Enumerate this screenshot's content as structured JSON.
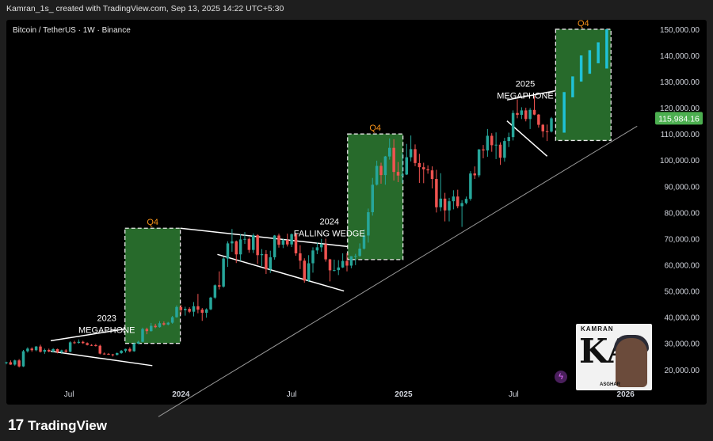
{
  "header": {
    "attribution": "Kamran_1s_ created with TradingView.com, Sep 13, 2025 14:22 UTC+5:30"
  },
  "symbol_line": "Bitcoin / TetherUS · 1W · Binance",
  "footer": {
    "brand": "TradingView"
  },
  "watermark": {
    "top": "KAMRAN",
    "letters": "KA",
    "bottom": "ASGHAR"
  },
  "colors": {
    "up": "#26a69a",
    "down": "#ef5350",
    "highlight_up": "#1fc2d6",
    "box_fill": "#2e7d32",
    "quarter_label": "#f7931a",
    "price_badge": "#4caf50"
  },
  "chart_data": {
    "type": "candlestick",
    "title": "Bitcoin / TetherUS · 1W · Binance",
    "y_axis": {
      "ticks": [
        20000,
        30000,
        40000,
        50000,
        60000,
        70000,
        80000,
        90000,
        100000,
        110000,
        120000,
        130000,
        140000,
        150000
      ],
      "tick_labels": [
        "20,000.00",
        "30,000.00",
        "40,000.00",
        "50,000.00",
        "60,000.00",
        "70,000.00",
        "80,000.00",
        "90,000.00",
        "100,000.00",
        "110,000.00",
        "120,000.00",
        "130,000.00",
        "140,000.00",
        "150,000.00"
      ],
      "range": [
        16000,
        153000
      ]
    },
    "x_axis": {
      "range": [
        "2023-03-20",
        "2026-02-16"
      ],
      "ticks": [
        {
          "date": "2023-07-01",
          "label": "Jul"
        },
        {
          "date": "2024-01-01",
          "label": "2024"
        },
        {
          "date": "2024-07-01",
          "label": "Jul"
        },
        {
          "date": "2025-01-01",
          "label": "2025"
        },
        {
          "date": "2025-07-01",
          "label": "Jul"
        },
        {
          "date": "2026-01-01",
          "label": "2026"
        }
      ]
    },
    "last_price": {
      "value": 115984.16,
      "label": "115,984.16"
    },
    "grid": false,
    "annotations": [
      {
        "text": [
          "2023",
          "MEGAPHONE"
        ],
        "date": "2023-09-01",
        "price": 38500
      },
      {
        "text": [
          "2024",
          "FALLING WEDGE"
        ],
        "date": "2024-09-01",
        "price": 75500
      },
      {
        "text": [
          "2025",
          "MEGAPHONE"
        ],
        "date": "2025-07-20",
        "price": 128000
      }
    ],
    "quarter_boxes": [
      {
        "label": "Q4",
        "start": "2023-10-01",
        "end": "2023-12-31",
        "low": 30000,
        "high": 74000
      },
      {
        "label": "Q4",
        "start": "2024-10-01",
        "end": "2024-12-31",
        "low": 62000,
        "high": 110000
      },
      {
        "label": "Q4",
        "start": "2025-09-08",
        "end": "2025-12-08",
        "low": 107500,
        "high": 150000
      }
    ],
    "lines": [
      {
        "from": {
          "date": "2023-11-25",
          "price": 2000
        },
        "to": {
          "date": "2026-01-20",
          "price": 113000
        }
      },
      {
        "from": {
          "date": "2023-06-01",
          "price": 31000
        },
        "to": {
          "date": "2023-10-01",
          "price": 35500
        }
      },
      {
        "from": {
          "date": "2023-06-01",
          "price": 27000
        },
        "to": {
          "date": "2023-11-15",
          "price": 21500
        }
      },
      {
        "from": {
          "date": "2023-12-31",
          "price": 74000
        },
        "to": {
          "date": "2024-10-01",
          "price": 67000
        }
      },
      {
        "from": {
          "date": "2024-03-01",
          "price": 64000
        },
        "to": {
          "date": "2024-09-25",
          "price": 50000
        }
      },
      {
        "from": {
          "date": "2025-06-20",
          "price": 123000
        },
        "to": {
          "date": "2025-09-08",
          "price": 126500
        }
      },
      {
        "from": {
          "date": "2025-06-20",
          "price": 115000
        },
        "to": {
          "date": "2025-08-25",
          "price": 101500
        }
      }
    ],
    "candles": {
      "start": "2023-03-20",
      "interval_days": 7,
      "ohlc": [
        [
          22500,
          23000,
          22000,
          22800
        ],
        [
          22800,
          23500,
          21800,
          21900
        ],
        [
          21900,
          23800,
          21500,
          23500
        ],
        [
          23500,
          24000,
          20800,
          21200
        ],
        [
          21200,
          27500,
          21000,
          27000
        ],
        [
          27000,
          28500,
          26500,
          28000
        ],
        [
          28000,
          28500,
          26800,
          27400
        ],
        [
          27400,
          29000,
          27000,
          28800
        ],
        [
          28800,
          29500,
          26500,
          26800
        ],
        [
          26800,
          28000,
          26000,
          27500
        ],
        [
          27500,
          28000,
          26600,
          26900
        ],
        [
          26900,
          28200,
          26500,
          27800
        ],
        [
          27800,
          28000,
          26200,
          26700
        ],
        [
          26700,
          27600,
          26000,
          27300
        ],
        [
          27300,
          27800,
          26500,
          26800
        ],
        [
          26800,
          30800,
          26600,
          30400
        ],
        [
          30400,
          31000,
          29800,
          30200
        ],
        [
          30200,
          31500,
          29900,
          30600
        ],
        [
          30600,
          31000,
          29800,
          30100
        ],
        [
          30100,
          30400,
          29200,
          29400
        ],
        [
          29400,
          29700,
          29000,
          29300
        ],
        [
          29300,
          29800,
          28800,
          29100
        ],
        [
          29100,
          29500,
          25800,
          26100
        ],
        [
          26100,
          26500,
          25700,
          26000
        ],
        [
          26000,
          26300,
          25600,
          25800
        ],
        [
          25800,
          26000,
          25000,
          25600
        ],
        [
          25600,
          26500,
          25400,
          26300
        ],
        [
          26300,
          27500,
          26000,
          27200
        ],
        [
          27200,
          28000,
          26500,
          27900
        ],
        [
          27900,
          28500,
          26600,
          27000
        ],
        [
          27000,
          30300,
          26800,
          29900
        ],
        [
          29900,
          31000,
          29700,
          30600
        ],
        [
          30600,
          36000,
          30400,
          35500
        ],
        [
          35500,
          36000,
          33500,
          34700
        ],
        [
          34700,
          37800,
          34500,
          36700
        ],
        [
          36700,
          37500,
          35800,
          36200
        ],
        [
          36200,
          38500,
          36000,
          37700
        ],
        [
          37700,
          38400,
          36800,
          37200
        ],
        [
          37200,
          38200,
          36900,
          37900
        ],
        [
          37900,
          40500,
          37500,
          40000
        ],
        [
          40000,
          44500,
          39800,
          43900
        ],
        [
          43900,
          44700,
          41000,
          42700
        ],
        [
          42700,
          44000,
          40600,
          43200
        ],
        [
          43200,
          43800,
          41600,
          42100
        ],
        [
          42100,
          45800,
          40300,
          44200
        ],
        [
          44200,
          48900,
          41500,
          42900
        ],
        [
          42900,
          43500,
          38600,
          41700
        ],
        [
          41700,
          43400,
          39800,
          43000
        ],
        [
          43000,
          47800,
          42700,
          47500
        ],
        [
          47500,
          52500,
          47000,
          52200
        ],
        [
          52200,
          57500,
          50600,
          51700
        ],
        [
          51700,
          63000,
          51300,
          62400
        ],
        [
          62400,
          69000,
          59200,
          68200
        ],
        [
          68200,
          73700,
          65000,
          69000
        ],
        [
          69000,
          69300,
          60700,
          64000
        ],
        [
          64000,
          71800,
          61500,
          69700
        ],
        [
          69700,
          72500,
          68000,
          69900
        ],
        [
          69900,
          70500,
          64600,
          65700
        ],
        [
          65700,
          72000,
          64500,
          71300
        ],
        [
          71300,
          71700,
          60300,
          63700
        ],
        [
          63700,
          66000,
          59600,
          64100
        ],
        [
          64100,
          65600,
          56500,
          58300
        ],
        [
          58300,
          65400,
          56900,
          62900
        ],
        [
          62900,
          71400,
          62000,
          71200
        ],
        [
          71200,
          71900,
          66600,
          67700
        ],
        [
          67700,
          70000,
          66400,
          69500
        ],
        [
          69500,
          71900,
          67000,
          67800
        ],
        [
          67800,
          72000,
          66800,
          71700
        ],
        [
          71700,
          71900,
          63500,
          64400
        ],
        [
          64400,
          67500,
          58400,
          61600
        ],
        [
          61600,
          62500,
          53200,
          54000
        ],
        [
          54000,
          63700,
          53500,
          60600
        ],
        [
          60600,
          66700,
          57000,
          65500
        ],
        [
          65500,
          68500,
          64100,
          66700
        ],
        [
          66700,
          69900,
          65000,
          67900
        ],
        [
          67900,
          70000,
          61200,
          62100
        ],
        [
          62100,
          62300,
          53700,
          57900
        ],
        [
          57900,
          62000,
          57500,
          58000
        ],
        [
          58000,
          61800,
          56100,
          59000
        ],
        [
          59000,
          64400,
          58800,
          61500
        ],
        [
          61500,
          64500,
          57500,
          59700
        ],
        [
          59700,
          63200,
          58700,
          63300
        ],
        [
          63300,
          64200,
          59900,
          63400
        ],
        [
          63400,
          68200,
          63000,
          66200
        ],
        [
          66200,
          73600,
          65800,
          71200
        ],
        [
          71200,
          81500,
          68500,
          80100
        ],
        [
          80100,
          93200,
          78800,
          90600
        ],
        [
          90600,
          99800,
          90300,
          97800
        ],
        [
          97800,
          99000,
          91000,
          94300
        ],
        [
          94300,
          101600,
          90600,
          101400
        ],
        [
          101400,
          108300,
          100200,
          104700
        ],
        [
          104700,
          108000,
          92200,
          95500
        ],
        [
          95500,
          99300,
          91600,
          94100
        ],
        [
          94100,
          102800,
          91300,
          94500
        ],
        [
          94500,
          106200,
          94300,
          101100
        ],
        [
          101100,
          109400,
          99500,
          104200
        ],
        [
          104200,
          106000,
          97700,
          98900
        ],
        [
          98900,
          102400,
          91300,
          97300
        ],
        [
          97300,
          99000,
          91200,
          96500
        ],
        [
          96500,
          98000,
          94800,
          96100
        ],
        [
          96100,
          97600,
          89200,
          92800
        ],
        [
          92800,
          96300,
          80000,
          82000
        ],
        [
          82000,
          95000,
          80500,
          85300
        ],
        [
          85300,
          87500,
          76600,
          80800
        ],
        [
          80800,
          85600,
          76600,
          84300
        ],
        [
          84300,
          88500,
          81200,
          86100
        ],
        [
          86100,
          88700,
          81600,
          82400
        ],
        [
          82400,
          84700,
          74500,
          83600
        ],
        [
          83600,
          86100,
          83100,
          85200
        ],
        [
          85200,
          95800,
          84500,
          94900
        ],
        [
          94900,
          97600,
          92800,
          94200
        ],
        [
          94200,
          104200,
          93400,
          104100
        ],
        [
          104100,
          105800,
          100700,
          103700
        ],
        [
          103700,
          111900,
          101300,
          109300
        ],
        [
          109300,
          110300,
          103200,
          105700
        ],
        [
          105700,
          110600,
          100400,
          105900
        ],
        [
          105900,
          106800,
          98200,
          100900
        ],
        [
          100900,
          108500,
          99400,
          107300
        ],
        [
          107300,
          110500,
          105000,
          108800
        ],
        [
          108800,
          119000,
          107500,
          118000
        ],
        [
          118000,
          123200,
          116000,
          117300
        ],
        [
          117300,
          120200,
          115700,
          119000
        ],
        [
          119000,
          120000,
          114800,
          115700
        ],
        [
          115700,
          119900,
          111900,
          119200
        ],
        [
          119200,
          124500,
          117200,
          117400
        ],
        [
          117400,
          117600,
          112400,
          113500
        ],
        [
          113500,
          113800,
          108700,
          111000
        ],
        [
          111000,
          113600,
          107300,
          110900
        ],
        [
          110900,
          116500,
          110600,
          115984
        ]
      ],
      "projected_up_candles": [
        {
          "date": "2025-09-22",
          "open": 110500,
          "close": 126000
        },
        {
          "date": "2025-10-06",
          "open": 124000,
          "close": 132000
        },
        {
          "date": "2025-10-20",
          "open": 130000,
          "close": 140000
        },
        {
          "date": "2025-11-03",
          "open": 133000,
          "close": 142000
        },
        {
          "date": "2025-11-17",
          "open": 137000,
          "close": 145000
        },
        {
          "date": "2025-12-01",
          "open": 135000,
          "close": 150000
        }
      ]
    }
  }
}
